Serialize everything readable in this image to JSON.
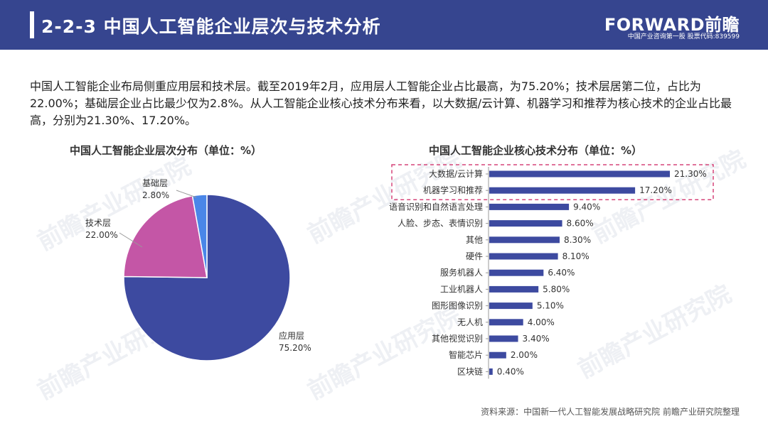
{
  "header": {
    "title": "2-2-3 中国人工智能企业层次与技术分析",
    "logo": "FORWARD前瞻",
    "logo_sub": "中国产业咨询第一股 股票代码:839599",
    "accent_color": "#36458f"
  },
  "intro_text": "中国人工智能企业布局侧重应用层和技术层。截至2019年2月，应用层人工智能企业占比最高，为75.20%；技术层居第二位，占比为22.00%；基础层企业占比最少仅为2.8%。从人工智能企业核心技术分布来看，以大数据/云计算、机器学习和推荐为核心技术的企业占比最高，分别为21.30%、17.20%。",
  "watermark_text": "前瞻产业研究院",
  "source": "资料来源：中国新一代人工智能发展战略研究院 前瞻产业研究院整理",
  "chart_data": [
    {
      "type": "pie",
      "title": "中国人工智能企业层次分布（单位：%）",
      "slices": [
        {
          "label": "应用层",
          "value": 75.2,
          "value_label": "75.20%",
          "color": "#3d4aa0"
        },
        {
          "label": "技术层",
          "value": 22.0,
          "value_label": "22.00%",
          "color": "#c456a6"
        },
        {
          "label": "基础层",
          "value": 2.8,
          "value_label": "2.80%",
          "color": "#4a86e8"
        }
      ]
    },
    {
      "type": "bar",
      "orientation": "horizontal",
      "title": "中国人工智能企业核心技术分布（单位：%）",
      "categories": [
        "大数据/云计算",
        "机器学习和推荐",
        "语音识别和自然语言处理",
        "人脸、步态、表情识别",
        "其他",
        "硬件",
        "服务机器人",
        "工业机器人",
        "图形图像识别",
        "无人机",
        "其他视觉识别",
        "智能芯片",
        "区块链"
      ],
      "values": [
        21.3,
        17.2,
        9.4,
        8.6,
        8.3,
        8.1,
        6.4,
        5.8,
        5.1,
        4.0,
        3.4,
        2.0,
        0.4
      ],
      "value_labels": [
        "21.30%",
        "17.20%",
        "9.40%",
        "8.60%",
        "8.30%",
        "8.10%",
        "6.40%",
        "5.80%",
        "5.10%",
        "4.00%",
        "3.40%",
        "2.00%",
        "0.40%"
      ],
      "xlim": [
        0,
        24
      ],
      "bar_color": "#3d4aa0",
      "highlight_categories": [
        "大数据/云计算",
        "机器学习和推荐"
      ],
      "highlight_color": "#d6457a"
    }
  ]
}
